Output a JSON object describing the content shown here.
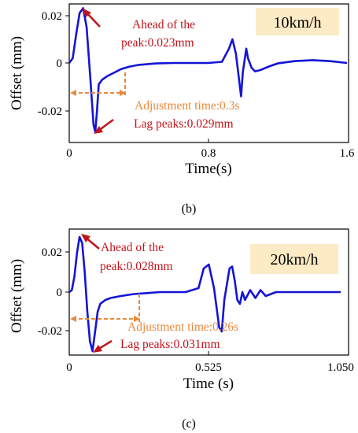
{
  "colors": {
    "curve": "#1414d6",
    "annotation_red": "#c0141b",
    "annotation_orange": "#e8893a",
    "speed_box": "#fcebc4"
  },
  "chart_data": [
    {
      "panel": "b",
      "type": "line",
      "speed_label": "10km/h",
      "xlabel": "Time(s)",
      "ylabel": "Offset (mm)",
      "xlim": [
        0,
        1.6
      ],
      "ylim": [
        -0.032,
        0.025
      ],
      "xticks": [
        "0",
        "0.8",
        "1.6"
      ],
      "yticks": [
        "0.02",
        "0",
        "-0.02"
      ],
      "grid": false,
      "annotations": {
        "ahead_line1": "Ahead of the",
        "ahead_line2": "peak:0.023mm",
        "adjustment": "Adjustment time:0.3s",
        "lag": "Lag peaks:0.029mm"
      },
      "series": [
        {
          "x": [
            0,
            0.02,
            0.04,
            0.06,
            0.08,
            0.1,
            0.12,
            0.14,
            0.15,
            0.16,
            0.17,
            0.19,
            0.22,
            0.26,
            0.3,
            0.35,
            0.4,
            0.5,
            0.6,
            0.7,
            0.8,
            0.88,
            0.92,
            0.94,
            0.96,
            0.98,
            0.99,
            1.0,
            1.02,
            1.03,
            1.05,
            1.07,
            1.1,
            1.15,
            1.2,
            1.3,
            1.4,
            1.5,
            1.6
          ],
          "y": [
            0,
            0.002,
            0.012,
            0.021,
            0.023,
            0.015,
            -0.005,
            -0.026,
            -0.029,
            -0.02,
            -0.009,
            -0.007,
            -0.0055,
            -0.004,
            -0.0025,
            -0.0015,
            -0.0008,
            -0.0002,
            0,
            0,
            0,
            0.0005,
            0.006,
            0.01,
            0.004,
            -0.008,
            -0.014,
            -0.004,
            0.006,
            0.002,
            -0.002,
            -0.0035,
            -0.003,
            -0.0015,
            -0.0002,
            0.0008,
            0.0012,
            0.0008,
            0
          ]
        }
      ]
    },
    {
      "panel": "c",
      "type": "line",
      "speed_label": "20km/h",
      "xlabel": "Time (s)",
      "ylabel": "Offset (mm)",
      "xlim": [
        0,
        1.05
      ],
      "ylim": [
        -0.032,
        0.03
      ],
      "xticks": [
        "0",
        "0.525",
        "1.050"
      ],
      "yticks": [
        "0.02",
        "0",
        "-0.02"
      ],
      "grid": false,
      "annotations": {
        "ahead_line1": "Ahead of the",
        "ahead_line2": "peak:0.028mm",
        "adjustment": "Adjustment time:0.26s",
        "lag": "Lag peaks:0.031mm"
      },
      "series": [
        {
          "x": [
            0,
            0.01,
            0.02,
            0.03,
            0.04,
            0.05,
            0.06,
            0.07,
            0.08,
            0.09,
            0.1,
            0.11,
            0.12,
            0.14,
            0.16,
            0.2,
            0.25,
            0.3,
            0.35,
            0.4,
            0.45,
            0.5,
            0.52,
            0.54,
            0.56,
            0.58,
            0.59,
            0.6,
            0.62,
            0.63,
            0.64,
            0.65,
            0.66,
            0.67,
            0.68,
            0.7,
            0.72,
            0.74,
            0.76,
            0.8,
            0.9,
            1.0,
            1.05
          ],
          "y": [
            0,
            0.001,
            0.008,
            0.02,
            0.028,
            0.025,
            0.01,
            -0.01,
            -0.025,
            -0.03,
            -0.02,
            -0.01,
            -0.006,
            -0.004,
            -0.003,
            -0.002,
            -0.001,
            -0.0005,
            0,
            0,
            0,
            0.002,
            0.012,
            0.014,
            0.002,
            -0.018,
            -0.02,
            -0.004,
            0.012,
            0.013,
            0.006,
            -0.004,
            -0.006,
            0,
            -0.004,
            0.001,
            -0.003,
            0.001,
            -0.002,
            0,
            0,
            0,
            0
          ]
        }
      ]
    }
  ],
  "captions": [
    "(b)",
    "(c)"
  ]
}
